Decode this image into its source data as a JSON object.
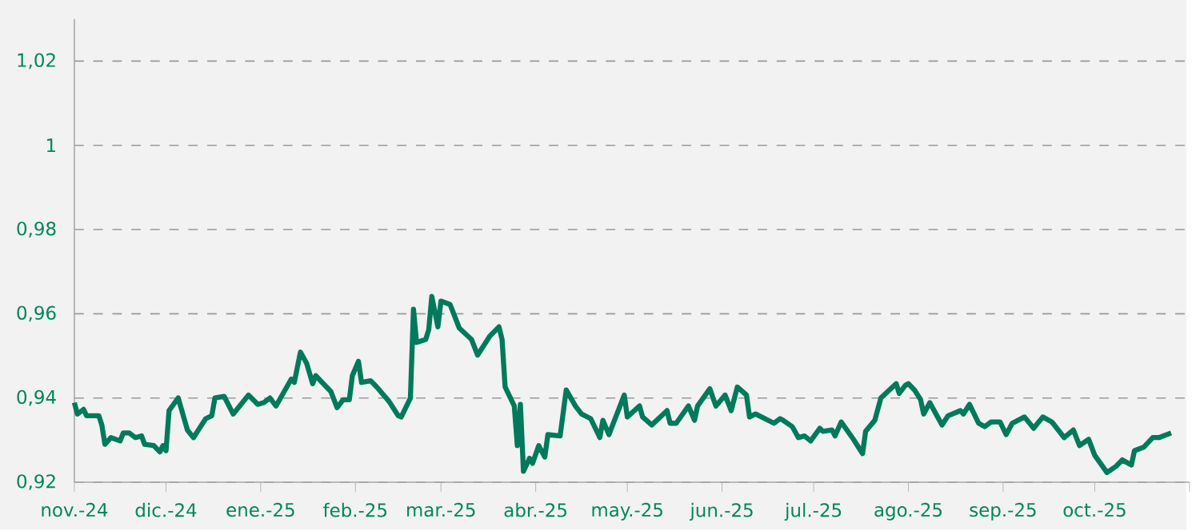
{
  "chart_data": {
    "type": "line",
    "x": [
      "2024-11-01",
      "2024-11-02",
      "2024-11-04",
      "2024-11-05",
      "2024-11-09",
      "2024-11-10",
      "2024-11-11",
      "2024-11-13",
      "2024-11-16",
      "2024-11-17",
      "2024-11-19",
      "2024-11-21",
      "2024-11-23",
      "2024-11-24",
      "2024-11-27",
      "2024-11-29",
      "2024-11-30",
      "2024-12-01",
      "2024-12-02",
      "2024-12-05",
      "2024-12-08",
      "2024-12-10",
      "2024-12-14",
      "2024-12-16",
      "2024-12-17",
      "2024-12-20",
      "2024-12-23",
      "2024-12-28",
      "2024-12-31",
      "2025-01-02",
      "2025-01-04",
      "2025-01-06",
      "2025-01-11",
      "2025-01-12",
      "2025-01-14",
      "2025-01-16",
      "2025-01-18",
      "2025-01-19",
      "2025-01-24",
      "2025-01-26",
      "2025-01-28",
      "2025-01-30",
      "2025-01-31",
      "2025-02-02",
      "2025-02-03",
      "2025-02-06",
      "2025-02-08",
      "2025-02-12",
      "2025-02-15",
      "2025-02-16",
      "2025-02-19",
      "2025-02-20",
      "2025-02-21",
      "2025-02-24",
      "2025-02-25",
      "2025-02-26",
      "2025-02-28",
      "2025-03-01",
      "2025-03-04",
      "2025-03-07",
      "2025-03-11",
      "2025-03-13",
      "2025-03-17",
      "2025-03-20",
      "2025-03-21",
      "2025-03-22",
      "2025-03-25",
      "2025-03-26",
      "2025-03-27",
      "2025-03-28",
      "2025-03-30",
      "2025-03-31",
      "2025-04-02",
      "2025-04-04",
      "2025-04-05",
      "2025-04-09",
      "2025-04-11",
      "2025-04-14",
      "2025-04-16",
      "2025-04-19",
      "2025-04-22",
      "2025-04-23",
      "2025-04-25",
      "2025-04-26",
      "2025-04-30",
      "2025-05-01",
      "2025-05-05",
      "2025-05-06",
      "2025-05-09",
      "2025-05-14",
      "2025-05-15",
      "2025-05-17",
      "2025-05-21",
      "2025-05-23",
      "2025-05-24",
      "2025-05-28",
      "2025-05-30",
      "2025-06-02",
      "2025-06-04",
      "2025-06-06",
      "2025-06-09",
      "2025-06-10",
      "2025-06-12",
      "2025-06-18",
      "2025-06-20",
      "2025-06-21",
      "2025-06-24",
      "2025-06-26",
      "2025-06-28",
      "2025-06-30",
      "2025-07-03",
      "2025-07-04",
      "2025-07-07",
      "2025-07-08",
      "2025-07-10",
      "2025-07-14",
      "2025-07-17",
      "2025-07-18",
      "2025-07-21",
      "2025-07-23",
      "2025-07-28",
      "2025-07-29",
      "2025-07-31",
      "2025-08-01",
      "2025-08-03",
      "2025-08-05",
      "2025-08-06",
      "2025-08-08",
      "2025-08-12",
      "2025-08-14",
      "2025-08-18",
      "2025-08-19",
      "2025-08-21",
      "2025-08-24",
      "2025-08-26",
      "2025-08-28",
      "2025-08-31",
      "2025-09-02",
      "2025-09-04",
      "2025-09-08",
      "2025-09-11",
      "2025-09-14",
      "2025-09-17",
      "2025-09-21",
      "2025-09-24",
      "2025-09-26",
      "2025-09-29",
      "2025-10-01",
      "2025-10-05",
      "2025-10-08",
      "2025-10-10",
      "2025-10-13",
      "2025-10-14",
      "2025-10-17",
      "2025-10-20",
      "2025-10-22",
      "2025-10-26"
    ],
    "values": [
      0.9389,
      0.9362,
      0.9373,
      0.9358,
      0.9358,
      0.9336,
      0.929,
      0.9306,
      0.9298,
      0.9317,
      0.9317,
      0.9306,
      0.931,
      0.929,
      0.9287,
      0.9272,
      0.9287,
      0.9275,
      0.937,
      0.94,
      0.9324,
      0.9306,
      0.9351,
      0.9358,
      0.94,
      0.9404,
      0.9362,
      0.9407,
      0.9385,
      0.9389,
      0.94,
      0.9381,
      0.9445,
      0.9437,
      0.9509,
      0.9483,
      0.9434,
      0.9453,
      0.9415,
      0.9377,
      0.9396,
      0.9396,
      0.9453,
      0.9487,
      0.9437,
      0.9441,
      0.9426,
      0.9392,
      0.9358,
      0.9355,
      0.94,
      0.9611,
      0.9532,
      0.9539,
      0.9562,
      0.9641,
      0.9569,
      0.963,
      0.9622,
      0.9566,
      0.9539,
      0.9502,
      0.9547,
      0.9569,
      0.9539,
      0.9426,
      0.9381,
      0.9287,
      0.9385,
      0.9226,
      0.9257,
      0.9245,
      0.9287,
      0.926,
      0.9313,
      0.931,
      0.9419,
      0.9381,
      0.9362,
      0.9351,
      0.9306,
      0.9347,
      0.9313,
      0.9332,
      0.9407,
      0.9355,
      0.9381,
      0.9355,
      0.9336,
      0.937,
      0.934,
      0.934,
      0.9381,
      0.9347,
      0.9381,
      0.9422,
      0.9381,
      0.9407,
      0.937,
      0.9426,
      0.9407,
      0.9355,
      0.9362,
      0.934,
      0.9351,
      0.9347,
      0.9332,
      0.9306,
      0.931,
      0.9298,
      0.9328,
      0.9321,
      0.9324,
      0.931,
      0.9343,
      0.9302,
      0.9268,
      0.9321,
      0.9347,
      0.94,
      0.9434,
      0.9411,
      0.943,
      0.9434,
      0.9419,
      0.9396,
      0.9362,
      0.9389,
      0.9336,
      0.9358,
      0.937,
      0.9362,
      0.9385,
      0.934,
      0.9332,
      0.9343,
      0.9343,
      0.9313,
      0.934,
      0.9355,
      0.9328,
      0.9355,
      0.9343,
      0.9306,
      0.9324,
      0.9287,
      0.9302,
      0.9264,
      0.9223,
      0.9238,
      0.9253,
      0.9241,
      0.9275,
      0.9283,
      0.9306,
      0.9306,
      0.9317
    ],
    "color": "#007a5a",
    "line_style": "solid",
    "marker": "none",
    "grid": "y",
    "xlim": [
      "2024-11-01",
      "2025-11-01"
    ],
    "xticks": [
      {
        "value": "2024-11-01",
        "label": "nov.-24"
      },
      {
        "value": "2024-12-01",
        "label": "dic.-24"
      },
      {
        "value": "2025-01-01",
        "label": "ene.-25"
      },
      {
        "value": "2025-02-01",
        "label": "feb.-25"
      },
      {
        "value": "2025-03-01",
        "label": "mar.-25"
      },
      {
        "value": "2025-04-01",
        "label": "abr.-25"
      },
      {
        "value": "2025-05-01",
        "label": "may.-25"
      },
      {
        "value": "2025-06-01",
        "label": "jun.-25"
      },
      {
        "value": "2025-07-01",
        "label": "jul.-25"
      },
      {
        "value": "2025-08-01",
        "label": "ago.-25"
      },
      {
        "value": "2025-09-01",
        "label": "sep.-25"
      },
      {
        "value": "2025-10-01",
        "label": "oct.-25"
      },
      {
        "value": "2025-11-01",
        "label": null
      }
    ],
    "ylim": [
      0.92,
      1.03
    ],
    "yticks": [
      {
        "value": 0.92,
        "label": "0,92"
      },
      {
        "value": 0.94,
        "label": "0,94"
      },
      {
        "value": 0.96,
        "label": "0,96"
      },
      {
        "value": 0.98,
        "label": "0,98"
      },
      {
        "value": 1,
        "label": "1"
      },
      {
        "value": 1.02,
        "label": "1,02"
      }
    ]
  }
}
